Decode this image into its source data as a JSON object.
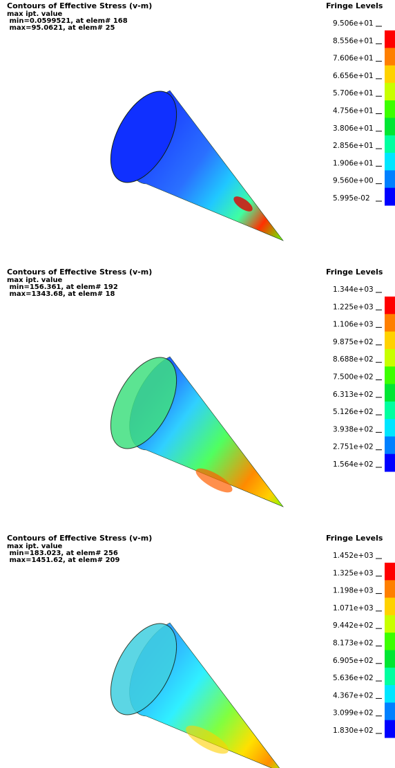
{
  "panels": [
    {
      "title": "Contours of Effective Stress (v-m)",
      "lines": [
        "max ipt. value",
        " min=0.0599521, at elem# 168",
        " max=95.0621, at elem# 25"
      ],
      "fringe_title": "Fringe Levels",
      "levels": [
        "9.506e+01",
        "8.556e+01",
        "7.606e+01",
        "6.656e+01",
        "5.706e+01",
        "4.756e+01",
        "3.806e+01",
        "2.856e+01",
        "1.906e+01",
        "9.560e+00",
        "5.995e-02"
      ]
    },
    {
      "title": "Contours of Effective Stress (v-m)",
      "lines": [
        "max ipt. value",
        " min=156.361, at elem# 192",
        " max=1343.68, at elem# 18"
      ],
      "fringe_title": "Fringe Levels",
      "levels": [
        "1.344e+03",
        "1.225e+03",
        "1.106e+03",
        "9.875e+02",
        "8.688e+02",
        "7.500e+02",
        "6.313e+02",
        "5.126e+02",
        "3.938e+02",
        "2.751e+02",
        "1.564e+02"
      ]
    },
    {
      "title": "Contours of Effective Stress (v-m)",
      "lines": [
        "max ipt. value",
        " min=183.023, at elem# 256",
        " max=1451.62, at elem# 209"
      ],
      "fringe_title": "Fringe Levels",
      "levels": [
        "1.452e+03",
        "1.325e+03",
        "1.198e+03",
        "1.071e+03",
        "9.442e+02",
        "8.173e+02",
        "6.905e+02",
        "5.636e+02",
        "4.367e+02",
        "3.099e+02",
        "1.830e+02"
      ]
    }
  ]
}
